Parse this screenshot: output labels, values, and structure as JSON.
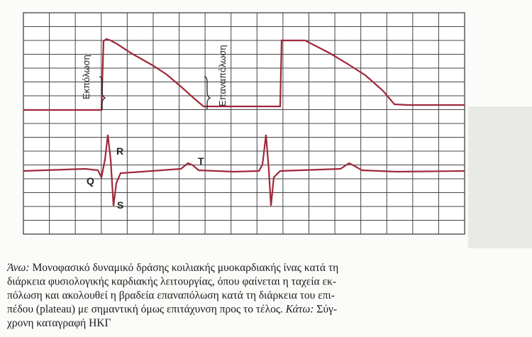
{
  "figure": {
    "labels": {
      "depolarization": "Εκπόλωση",
      "repolarization": "Επαναπόλωση",
      "r": "R",
      "q": "Q",
      "s": "S",
      "t": "T"
    },
    "caption": {
      "lines": [
        [
          {
            "text": "Άνω:",
            "italic": true
          },
          {
            "text": " Μονοφασικό δυναμικό δράσης κοιλιακής μυοκαρδιακής ίνας κατά τη",
            "italic": false
          }
        ],
        [
          {
            "text": "διάρκεια φυσιολογικής καρδιακής λειτουργίας, όπου φαίνεται η ταχεία εκ-",
            "italic": false
          }
        ],
        [
          {
            "text": "πόλωση και ακολουθεί η βραδεία επαναπόλωση κατά τη διάρκεια του επι-",
            "italic": false
          }
        ],
        [
          {
            "text": "πέδου (plateau) με σημαντική όμως επιτάχυνση προς το τέλος. ",
            "italic": false
          },
          {
            "text": "Κάτω:",
            "italic": true
          },
          {
            "text": " Σύγ-",
            "italic": false
          }
        ],
        [
          {
            "text": "χρονη καταγραφή ΗΚΓ",
            "italic": false
          }
        ]
      ]
    }
  }
}
